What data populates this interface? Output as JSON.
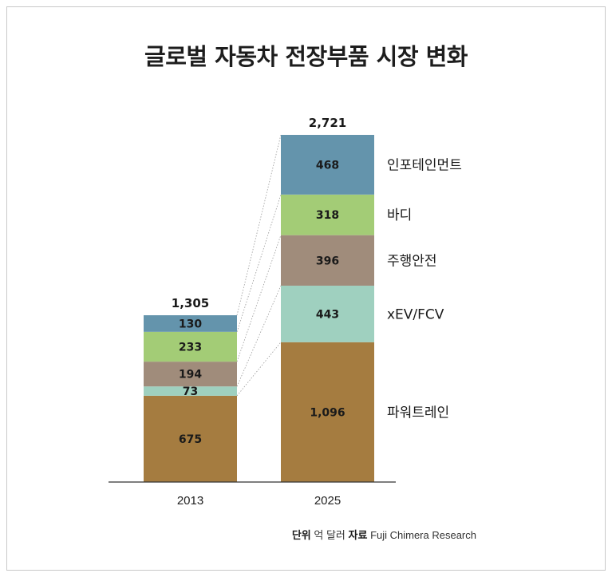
{
  "title": "글로벌 자동차 전장부품 시장 변화",
  "source": {
    "unit_label": "단위",
    "unit_value": "억 달러",
    "source_label": "자료",
    "source_value": "Fuji Chimera Research"
  },
  "colors": {
    "파워트레인": "#a57c40",
    "xEV/FCV": "#9fd0bf",
    "주행안전": "#a08c7b",
    "바디": "#a3cc76",
    "인포테인먼트": "#6494ac"
  },
  "chart_data": {
    "type": "bar",
    "stacked": true,
    "title": "글로벌 자동차 전장부품 시장 변화",
    "categories": [
      "2013",
      "2025"
    ],
    "totals": [
      "1,305",
      "2,721"
    ],
    "series": [
      {
        "name": "파워트레인",
        "values": [
          675,
          1096
        ],
        "labels": [
          "675",
          "1,096"
        ]
      },
      {
        "name": "xEV/FCV",
        "values": [
          73,
          443
        ],
        "labels": [
          "73",
          "443"
        ]
      },
      {
        "name": "주행안전",
        "values": [
          194,
          396
        ],
        "labels": [
          "194",
          "396"
        ]
      },
      {
        "name": "바디",
        "values": [
          233,
          318
        ],
        "labels": [
          "233",
          "318"
        ]
      },
      {
        "name": "인포테인먼트",
        "values": [
          130,
          468
        ],
        "labels": [
          "130",
          "468"
        ]
      }
    ],
    "legend_position": "right",
    "grid": false
  }
}
